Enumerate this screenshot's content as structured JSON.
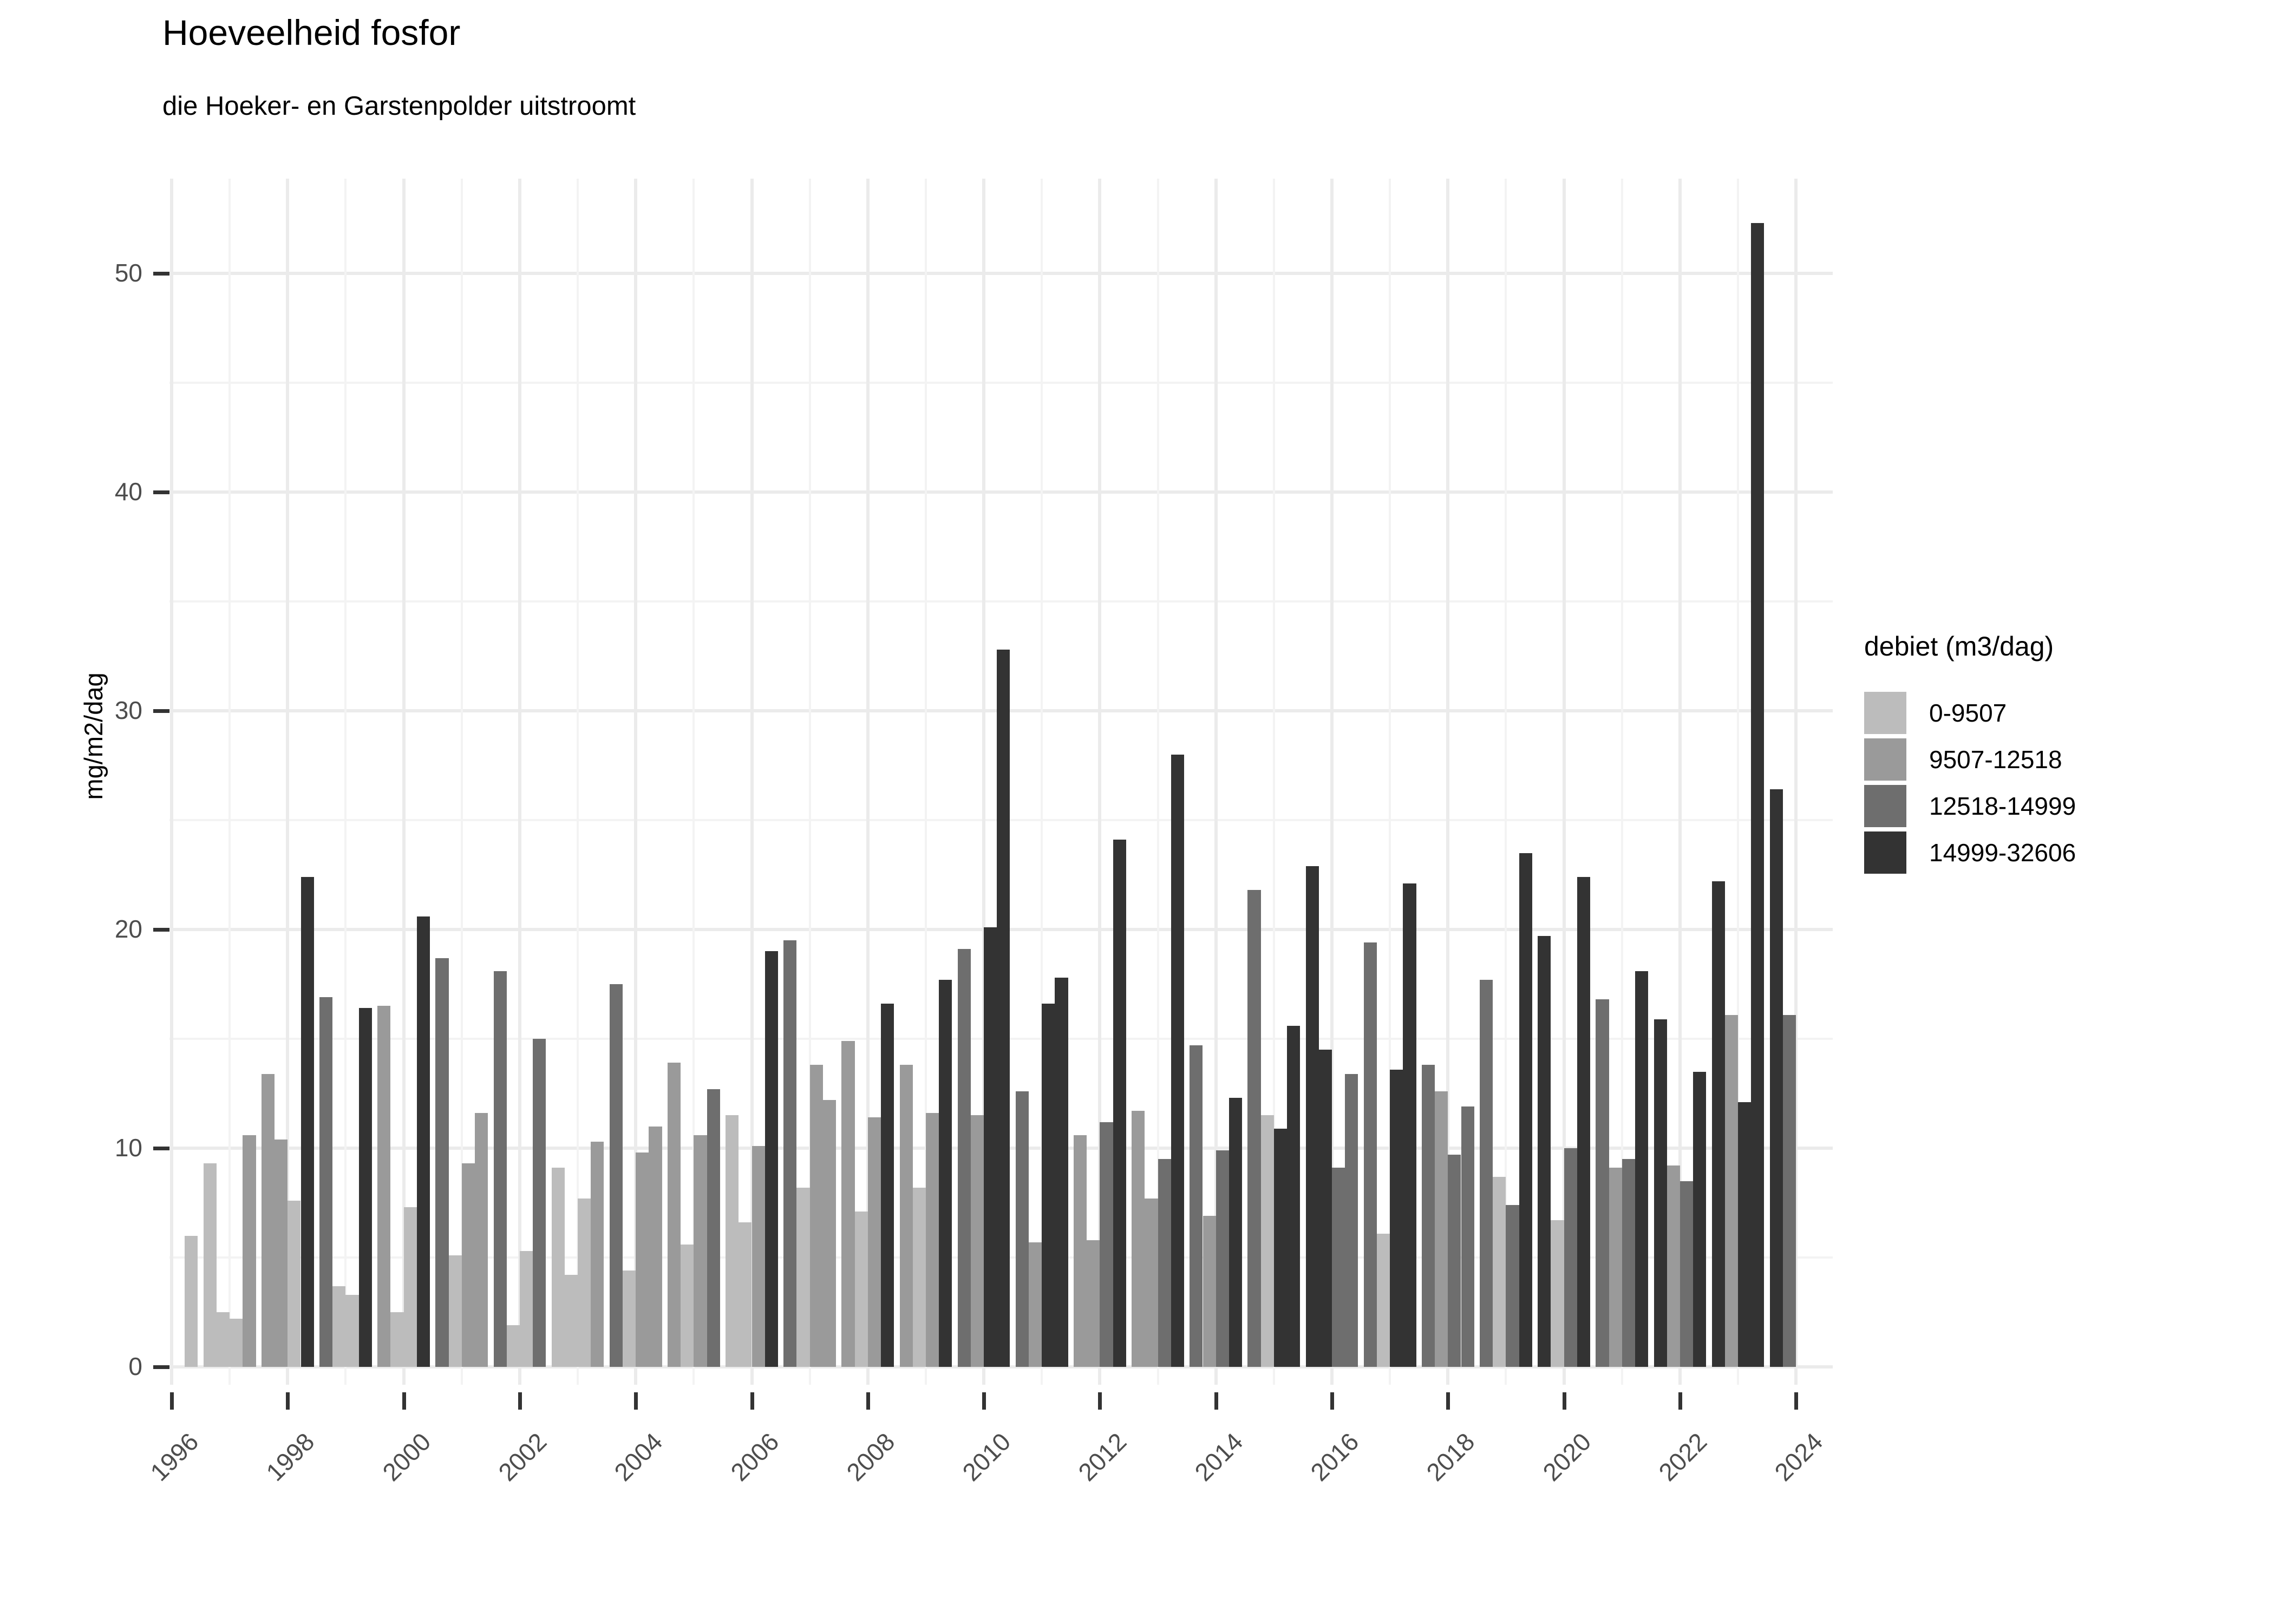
{
  "header": {
    "title": "Hoeveelheid fosfor",
    "subtitle": "die Hoeker- en Garstenpolder uitstroomt"
  },
  "chart_data": {
    "type": "bar",
    "title": "Hoeveelheid fosfor",
    "subtitle": "die Hoeker- en Garstenpolder uitstroomt",
    "xlabel": "",
    "ylabel": "mg/m2/dag",
    "ylim": [
      0,
      54
    ],
    "grid": "on",
    "legend_position": "right",
    "legend_title": "debiet (m3/dag)",
    "y_ticks": [
      0,
      10,
      20,
      30,
      40,
      50
    ],
    "x_ticks": [
      1996,
      1998,
      2000,
      2002,
      2004,
      2006,
      2008,
      2010,
      2012,
      2014,
      2016,
      2018,
      2020,
      2022,
      2024
    ],
    "flow_classes": [
      {
        "label": "0-9507",
        "color": "#bcbcbc"
      },
      {
        "label": "9507-12518",
        "color": "#9a9a9a"
      },
      {
        "label": "12518-14999",
        "color": "#6e6e6e"
      },
      {
        "label": "14999-32606",
        "color": "#333333"
      }
    ],
    "bars": [
      {
        "year": 1996,
        "slot": 3,
        "value": 6.0,
        "flow": "0-9507"
      },
      {
        "year": 1997,
        "slot": 0,
        "value": 9.3,
        "flow": "0-9507"
      },
      {
        "year": 1997,
        "slot": 1,
        "value": 2.5,
        "flow": "0-9507"
      },
      {
        "year": 1997,
        "slot": 2,
        "value": 2.2,
        "flow": "0-9507"
      },
      {
        "year": 1997,
        "slot": 3,
        "value": 10.6,
        "flow": "9507-12518"
      },
      {
        "year": 1998,
        "slot": 0,
        "value": 13.4,
        "flow": "9507-12518"
      },
      {
        "year": 1998,
        "slot": 1,
        "value": 10.4,
        "flow": "9507-12518"
      },
      {
        "year": 1998,
        "slot": 2,
        "value": 7.6,
        "flow": "0-9507"
      },
      {
        "year": 1998,
        "slot": 3,
        "value": 22.4,
        "flow": "14999-32606"
      },
      {
        "year": 1999,
        "slot": 0,
        "value": 16.9,
        "flow": "12518-14999"
      },
      {
        "year": 1999,
        "slot": 1,
        "value": 3.7,
        "flow": "0-9507"
      },
      {
        "year": 1999,
        "slot": 2,
        "value": 3.3,
        "flow": "0-9507"
      },
      {
        "year": 1999,
        "slot": 3,
        "value": 16.4,
        "flow": "14999-32606"
      },
      {
        "year": 2000,
        "slot": 0,
        "value": 16.5,
        "flow": "9507-12518"
      },
      {
        "year": 2000,
        "slot": 1,
        "value": 2.5,
        "flow": "0-9507"
      },
      {
        "year": 2000,
        "slot": 2,
        "value": 7.3,
        "flow": "0-9507"
      },
      {
        "year": 2000,
        "slot": 3,
        "value": 20.6,
        "flow": "14999-32606"
      },
      {
        "year": 2001,
        "slot": 0,
        "value": 18.7,
        "flow": "12518-14999"
      },
      {
        "year": 2001,
        "slot": 1,
        "value": 5.1,
        "flow": "0-9507"
      },
      {
        "year": 2001,
        "slot": 2,
        "value": 9.3,
        "flow": "9507-12518"
      },
      {
        "year": 2001,
        "slot": 3,
        "value": 11.6,
        "flow": "9507-12518"
      },
      {
        "year": 2002,
        "slot": 0,
        "value": 18.1,
        "flow": "12518-14999"
      },
      {
        "year": 2002,
        "slot": 1,
        "value": 1.9,
        "flow": "0-9507"
      },
      {
        "year": 2002,
        "slot": 2,
        "value": 5.3,
        "flow": "0-9507"
      },
      {
        "year": 2002,
        "slot": 3,
        "value": 15.0,
        "flow": "12518-14999"
      },
      {
        "year": 2003,
        "slot": 0,
        "value": 9.1,
        "flow": "0-9507"
      },
      {
        "year": 2003,
        "slot": 1,
        "value": 4.2,
        "flow": "0-9507"
      },
      {
        "year": 2003,
        "slot": 2,
        "value": 7.7,
        "flow": "0-9507"
      },
      {
        "year": 2003,
        "slot": 3,
        "value": 10.3,
        "flow": "9507-12518"
      },
      {
        "year": 2004,
        "slot": 0,
        "value": 17.5,
        "flow": "12518-14999"
      },
      {
        "year": 2004,
        "slot": 1,
        "value": 4.4,
        "flow": "0-9507"
      },
      {
        "year": 2004,
        "slot": 2,
        "value": 9.8,
        "flow": "9507-12518"
      },
      {
        "year": 2004,
        "slot": 3,
        "value": 11.0,
        "flow": "9507-12518"
      },
      {
        "year": 2005,
        "slot": 0,
        "value": 13.9,
        "flow": "9507-12518"
      },
      {
        "year": 2005,
        "slot": 1,
        "value": 5.6,
        "flow": "0-9507"
      },
      {
        "year": 2005,
        "slot": 2,
        "value": 10.6,
        "flow": "9507-12518"
      },
      {
        "year": 2005,
        "slot": 3,
        "value": 12.7,
        "flow": "12518-14999"
      },
      {
        "year": 2006,
        "slot": 0,
        "value": 11.5,
        "flow": "0-9507"
      },
      {
        "year": 2006,
        "slot": 1,
        "value": 6.6,
        "flow": "0-9507"
      },
      {
        "year": 2006,
        "slot": 2,
        "value": 10.1,
        "flow": "9507-12518"
      },
      {
        "year": 2006,
        "slot": 3,
        "value": 19.0,
        "flow": "14999-32606"
      },
      {
        "year": 2007,
        "slot": 0,
        "value": 19.5,
        "flow": "12518-14999"
      },
      {
        "year": 2007,
        "slot": 1,
        "value": 8.2,
        "flow": "0-9507"
      },
      {
        "year": 2007,
        "slot": 2,
        "value": 13.8,
        "flow": "9507-12518"
      },
      {
        "year": 2007,
        "slot": 3,
        "value": 12.2,
        "flow": "9507-12518"
      },
      {
        "year": 2008,
        "slot": 0,
        "value": 14.9,
        "flow": "9507-12518"
      },
      {
        "year": 2008,
        "slot": 1,
        "value": 7.1,
        "flow": "0-9507"
      },
      {
        "year": 2008,
        "slot": 2,
        "value": 11.4,
        "flow": "9507-12518"
      },
      {
        "year": 2008,
        "slot": 3,
        "value": 16.6,
        "flow": "14999-32606"
      },
      {
        "year": 2009,
        "slot": 0,
        "value": 13.8,
        "flow": "9507-12518"
      },
      {
        "year": 2009,
        "slot": 1,
        "value": 8.2,
        "flow": "0-9507"
      },
      {
        "year": 2009,
        "slot": 2,
        "value": 11.6,
        "flow": "9507-12518"
      },
      {
        "year": 2009,
        "slot": 3,
        "value": 17.7,
        "flow": "14999-32606"
      },
      {
        "year": 2010,
        "slot": 0,
        "value": 19.1,
        "flow": "12518-14999"
      },
      {
        "year": 2010,
        "slot": 1,
        "value": 11.5,
        "flow": "9507-12518"
      },
      {
        "year": 2010,
        "slot": 2,
        "value": 20.1,
        "flow": "14999-32606"
      },
      {
        "year": 2010,
        "slot": 3,
        "value": 32.8,
        "flow": "14999-32606"
      },
      {
        "year": 2011,
        "slot": 0,
        "value": 12.6,
        "flow": "12518-14999"
      },
      {
        "year": 2011,
        "slot": 1,
        "value": 5.7,
        "flow": "9507-12518"
      },
      {
        "year": 2011,
        "slot": 2,
        "value": 16.6,
        "flow": "14999-32606"
      },
      {
        "year": 2011,
        "slot": 3,
        "value": 17.8,
        "flow": "14999-32606"
      },
      {
        "year": 2012,
        "slot": 0,
        "value": 10.6,
        "flow": "9507-12518"
      },
      {
        "year": 2012,
        "slot": 1,
        "value": 5.8,
        "flow": "9507-12518"
      },
      {
        "year": 2012,
        "slot": 2,
        "value": 11.2,
        "flow": "12518-14999"
      },
      {
        "year": 2012,
        "slot": 3,
        "value": 24.1,
        "flow": "14999-32606"
      },
      {
        "year": 2013,
        "slot": 0,
        "value": 11.7,
        "flow": "9507-12518"
      },
      {
        "year": 2013,
        "slot": 1,
        "value": 7.7,
        "flow": "9507-12518"
      },
      {
        "year": 2013,
        "slot": 2,
        "value": 9.5,
        "flow": "12518-14999"
      },
      {
        "year": 2013,
        "slot": 3,
        "value": 28.0,
        "flow": "14999-32606"
      },
      {
        "year": 2014,
        "slot": 0,
        "value": 14.7,
        "flow": "12518-14999"
      },
      {
        "year": 2014,
        "slot": 1,
        "value": 6.9,
        "flow": "9507-12518"
      },
      {
        "year": 2014,
        "slot": 2,
        "value": 9.9,
        "flow": "12518-14999"
      },
      {
        "year": 2014,
        "slot": 3,
        "value": 12.3,
        "flow": "14999-32606"
      },
      {
        "year": 2015,
        "slot": 0,
        "value": 21.8,
        "flow": "12518-14999"
      },
      {
        "year": 2015,
        "slot": 1,
        "value": 11.5,
        "flow": "0-9507"
      },
      {
        "year": 2015,
        "slot": 2,
        "value": 10.9,
        "flow": "14999-32606"
      },
      {
        "year": 2015,
        "slot": 3,
        "value": 15.6,
        "flow": "14999-32606"
      },
      {
        "year": 2016,
        "slot": 0,
        "value": 22.9,
        "flow": "14999-32606"
      },
      {
        "year": 2016,
        "slot": 1,
        "value": 14.5,
        "flow": "14999-32606"
      },
      {
        "year": 2016,
        "slot": 2,
        "value": 9.1,
        "flow": "12518-14999"
      },
      {
        "year": 2016,
        "slot": 3,
        "value": 13.4,
        "flow": "12518-14999"
      },
      {
        "year": 2017,
        "slot": 0,
        "value": 19.4,
        "flow": "12518-14999"
      },
      {
        "year": 2017,
        "slot": 1,
        "value": 6.1,
        "flow": "0-9507"
      },
      {
        "year": 2017,
        "slot": 2,
        "value": 13.6,
        "flow": "14999-32606"
      },
      {
        "year": 2017,
        "slot": 3,
        "value": 22.1,
        "flow": "14999-32606"
      },
      {
        "year": 2018,
        "slot": 0,
        "value": 13.8,
        "flow": "12518-14999"
      },
      {
        "year": 2018,
        "slot": 1,
        "value": 12.6,
        "flow": "9507-12518"
      },
      {
        "year": 2018,
        "slot": 2,
        "value": 9.7,
        "flow": "12518-14999"
      },
      {
        "year": 2018,
        "slot": 3,
        "value": 11.9,
        "flow": "12518-14999"
      },
      {
        "year": 2019,
        "slot": 0,
        "value": 17.7,
        "flow": "12518-14999"
      },
      {
        "year": 2019,
        "slot": 1,
        "value": 8.7,
        "flow": "0-9507"
      },
      {
        "year": 2019,
        "slot": 2,
        "value": 7.4,
        "flow": "12518-14999"
      },
      {
        "year": 2019,
        "slot": 3,
        "value": 23.5,
        "flow": "14999-32606"
      },
      {
        "year": 2020,
        "slot": 0,
        "value": 19.7,
        "flow": "14999-32606"
      },
      {
        "year": 2020,
        "slot": 1,
        "value": 6.7,
        "flow": "0-9507"
      },
      {
        "year": 2020,
        "slot": 2,
        "value": 10.0,
        "flow": "12518-14999"
      },
      {
        "year": 2020,
        "slot": 3,
        "value": 22.4,
        "flow": "14999-32606"
      },
      {
        "year": 2021,
        "slot": 0,
        "value": 16.8,
        "flow": "12518-14999"
      },
      {
        "year": 2021,
        "slot": 1,
        "value": 9.1,
        "flow": "9507-12518"
      },
      {
        "year": 2021,
        "slot": 2,
        "value": 9.5,
        "flow": "12518-14999"
      },
      {
        "year": 2021,
        "slot": 3,
        "value": 18.1,
        "flow": "14999-32606"
      },
      {
        "year": 2022,
        "slot": 0,
        "value": 15.9,
        "flow": "14999-32606"
      },
      {
        "year": 2022,
        "slot": 1,
        "value": 9.2,
        "flow": "9507-12518"
      },
      {
        "year": 2022,
        "slot": 2,
        "value": 8.5,
        "flow": "12518-14999"
      },
      {
        "year": 2022,
        "slot": 3,
        "value": 13.5,
        "flow": "14999-32606"
      },
      {
        "year": 2023,
        "slot": 0,
        "value": 22.2,
        "flow": "14999-32606"
      },
      {
        "year": 2023,
        "slot": 1,
        "value": 16.1,
        "flow": "9507-12518"
      },
      {
        "year": 2023,
        "slot": 2,
        "value": 12.1,
        "flow": "14999-32606"
      },
      {
        "year": 2023,
        "slot": 3,
        "value": 52.3,
        "flow": "14999-32606"
      },
      {
        "year": 2024,
        "slot": 0,
        "value": 26.4,
        "flow": "14999-32606"
      },
      {
        "year": 2024,
        "slot": 1,
        "value": 16.1,
        "flow": "12518-14999"
      }
    ]
  },
  "legend": {
    "title": "debiet (m3/dag)",
    "items": [
      {
        "label": "0-9507",
        "color": "#bcbcbc"
      },
      {
        "label": "9507-12518",
        "color": "#9a9a9a"
      },
      {
        "label": "12518-14999",
        "color": "#6e6e6e"
      },
      {
        "label": "14999-32606",
        "color": "#333333"
      }
    ]
  },
  "axes": {
    "y_title": "mg/m2/dag",
    "y_tick_labels": [
      "0",
      "10",
      "20",
      "30",
      "40",
      "50"
    ],
    "x_tick_labels": [
      "1996",
      "1998",
      "2000",
      "2002",
      "2004",
      "2006",
      "2008",
      "2010",
      "2012",
      "2014",
      "2016",
      "2018",
      "2020",
      "2022",
      "2024"
    ]
  }
}
